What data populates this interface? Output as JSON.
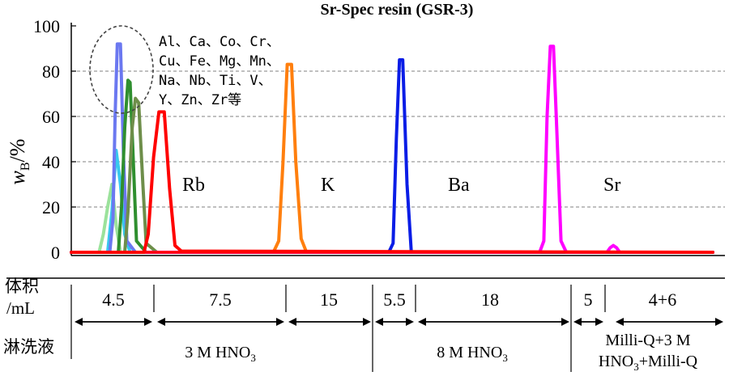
{
  "chart_data": {
    "type": "line",
    "title": "Sr-Spec resin (GSR-3)",
    "ylabel_main": "w",
    "ylabel_sub": "B",
    "ylabel_unit": "/%",
    "ylim": [
      0,
      100
    ],
    "yticks": [
      "0",
      "20",
      "40",
      "60",
      "80",
      "100"
    ],
    "grid": "horizontal dashed at 20, 40, 60, 80",
    "x_range_mL": [
      0,
      60
    ],
    "series": [
      {
        "name": "Al、Ca、Co、Cr、Cu、Fe、Mg、Mn、Na、Nb、Ti、V、Y、Zn、Zr",
        "color": "#6b78f0",
        "x": [
          0,
          3.6,
          3.9,
          4.1,
          4.3,
          4.6,
          4.9,
          5.2,
          6,
          60
        ],
        "y": [
          0,
          0,
          15,
          60,
          92,
          92,
          40,
          5,
          0,
          0
        ]
      },
      {
        "name": "",
        "color": "#2f8f2f",
        "x": [
          0,
          4.4,
          4.7,
          5.0,
          5.3,
          5.5,
          5.8,
          6.1,
          7,
          60
        ],
        "y": [
          0,
          0,
          20,
          55,
          76,
          75,
          40,
          5,
          0,
          0
        ]
      },
      {
        "name": "",
        "color": "#6e8e4a",
        "x": [
          0,
          5.0,
          5.3,
          5.7,
          6.0,
          6.3,
          6.7,
          7.0,
          8,
          60
        ],
        "y": [
          0,
          0,
          18,
          55,
          68,
          66,
          30,
          4,
          0,
          0
        ]
      },
      {
        "name": "",
        "color": "#9be29b",
        "x": [
          0,
          2.6,
          3.0,
          3.4,
          3.8,
          4.2,
          4.6,
          60
        ],
        "y": [
          0,
          0,
          8,
          20,
          30,
          12,
          0,
          0
        ]
      },
      {
        "name": "",
        "color": "#38c9ee",
        "x": [
          0,
          3.4,
          3.8,
          4.2,
          4.6,
          5.0,
          5.5,
          60
        ],
        "y": [
          0,
          0,
          18,
          45,
          30,
          8,
          0,
          0
        ]
      },
      {
        "name": "Rb",
        "color": "#ff0000",
        "x": [
          0,
          6.8,
          7.2,
          7.7,
          8.2,
          8.7,
          9.2,
          9.7,
          10.3,
          60
        ],
        "y": [
          0,
          0,
          8,
          42,
          62,
          62,
          28,
          3,
          0.5,
          0
        ]
      },
      {
        "name": "K",
        "color": "#ff7f0e",
        "x": [
          0,
          18.9,
          19.4,
          19.8,
          20.2,
          20.6,
          21.0,
          21.5,
          22.0,
          60
        ],
        "y": [
          0,
          0,
          5,
          40,
          83,
          83,
          40,
          6,
          0,
          0
        ]
      },
      {
        "name": "Ba",
        "color": "#0a1de6",
        "x": [
          0,
          29.7,
          30.1,
          30.4,
          30.7,
          31.0,
          31.4,
          31.8,
          60
        ],
        "y": [
          0,
          0,
          4,
          50,
          85,
          85,
          30,
          0,
          0
        ]
      },
      {
        "name": "Sr",
        "color": "#ff00ff",
        "x": [
          0,
          43.8,
          44.2,
          44.5,
          44.8,
          45.1,
          45.4,
          45.8,
          46.3,
          50.1,
          50.4,
          50.7,
          51.0,
          51.3,
          60
        ],
        "y": [
          0,
          0,
          5,
          60,
          91,
          91,
          55,
          5,
          0,
          0,
          2,
          3,
          2,
          0,
          0
        ]
      },
      {
        "name": "",
        "color": "#ff0000",
        "x": [
          0,
          60
        ],
        "y": [
          0,
          0
        ]
      }
    ],
    "annotation_lines": [
      "Al、Ca、Co、Cr、",
      "Cu、Fe、Mg、Mn、",
      "Na、Nb、Ti、V、",
      "Y、Zn、Zr等"
    ]
  },
  "table": {
    "row1_label_a": "体积",
    "row1_label_b": "/mL",
    "row2_label": "淋洗液",
    "volumes": [
      "4.5",
      "7.5",
      "15",
      "5.5",
      "18",
      "5",
      "4+6"
    ],
    "eluents": [
      "3 M HNO",
      "8 M HNO"
    ],
    "eluent_sub": "3",
    "eluent3_line1": "Milli-Q+3 M",
    "eluent3_line2_a": "HNO",
    "eluent3_line2_sub": "3",
    "eluent3_line2_b": "+Milli-Q"
  }
}
